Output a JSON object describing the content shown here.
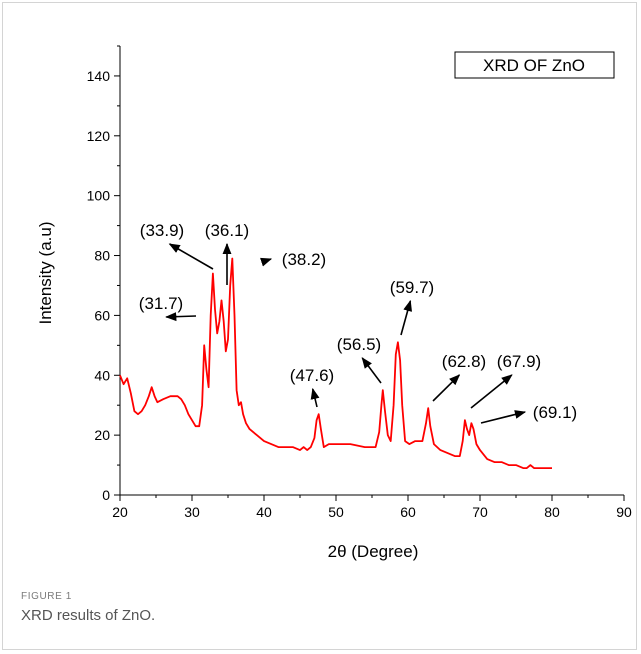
{
  "figure": {
    "label": "FIGURE 1",
    "caption": "XRD results of ZnO."
  },
  "chart_data": {
    "type": "line",
    "title": "XRD OF ZnO",
    "xlabel": "2θ (Degree)",
    "ylabel": "Intensity (a.u)",
    "xlim": [
      20,
      90
    ],
    "ylim": [
      0,
      150
    ],
    "xticks": [
      20,
      30,
      40,
      50,
      60,
      70,
      80,
      90
    ],
    "yticks": [
      0,
      20,
      40,
      60,
      80,
      100,
      120,
      140
    ],
    "grid": false,
    "line_color": "#ff0000",
    "series": [
      {
        "x": [
          20,
          20.5,
          21,
          21.5,
          22,
          22.5,
          23,
          23.5,
          24,
          24.4,
          24.8,
          25.2,
          26,
          27,
          28,
          28.5,
          29,
          29.5,
          30,
          30.5,
          31,
          31.4,
          31.7,
          32.0,
          32.3,
          32.6,
          32.9,
          33.2,
          33.5,
          33.8,
          34.1,
          34.4,
          34.7,
          35.0,
          35.3,
          35.6,
          35.9,
          36.2,
          36.5,
          36.8,
          37.1,
          37.5,
          38.0,
          38.5,
          39,
          40,
          41,
          42,
          43,
          44,
          45,
          45.5,
          46,
          46.5,
          47,
          47.3,
          47.6,
          47.9,
          48.3,
          49,
          50,
          52,
          54,
          55.5,
          56.0,
          56.3,
          56.5,
          56.8,
          57.2,
          57.6,
          58.0,
          58.3,
          58.6,
          58.9,
          59.2,
          59.6,
          60.2,
          61,
          62,
          62.5,
          62.8,
          63.1,
          63.6,
          64.5,
          65.5,
          66.5,
          67.2,
          67.6,
          67.9,
          68.2,
          68.5,
          68.8,
          69.1,
          69.5,
          70,
          71,
          72,
          73,
          74,
          75,
          76,
          76.5,
          77,
          77.5,
          78,
          79,
          80
        ],
        "y": [
          40,
          37,
          39,
          34,
          28,
          27,
          28,
          30,
          33,
          36,
          33,
          31,
          32,
          33,
          33,
          32,
          30,
          27,
          25,
          23,
          23,
          30,
          50,
          42,
          36,
          60,
          74,
          62,
          54,
          58,
          65,
          58,
          48,
          52,
          70,
          79,
          60,
          35,
          30,
          31,
          27,
          24,
          22,
          21,
          20,
          18,
          17,
          16,
          16,
          16,
          15,
          16,
          15,
          16,
          19,
          25,
          27,
          22,
          16,
          17,
          17,
          17,
          16,
          16,
          21,
          30,
          35,
          28,
          20,
          18,
          30,
          47,
          51,
          45,
          30,
          18,
          17,
          18,
          18,
          24,
          29,
          23,
          17,
          15,
          14,
          13,
          13,
          18,
          25,
          22,
          20,
          24,
          22,
          17,
          15,
          12,
          11,
          11,
          10,
          10,
          9,
          9,
          10,
          9,
          9,
          9,
          9
        ]
      }
    ],
    "annotations": [
      {
        "text": "(31.7)",
        "peak_x": 31.7,
        "peak_y": 52
      },
      {
        "text": "(33.9)",
        "peak_x": 32.9,
        "peak_y": 74
      },
      {
        "text": "(36.1)",
        "peak_x": 34.3,
        "peak_y": 67
      },
      {
        "text": "(38.2)",
        "peak_x": 36.5,
        "peak_y": 79
      },
      {
        "text": "(47.6)",
        "peak_x": 47.6,
        "peak_y": 27
      },
      {
        "text": "(56.5)",
        "peak_x": 56.5,
        "peak_y": 35
      },
      {
        "text": "(59.7)",
        "peak_x": 58.6,
        "peak_y": 51
      },
      {
        "text": "(62.8)",
        "peak_x": 62.8,
        "peak_y": 29
      },
      {
        "text": "(67.9)",
        "peak_x": 68.0,
        "peak_y": 26
      },
      {
        "text": "(69.1)",
        "peak_x": 69.2,
        "peak_y": 24
      }
    ]
  }
}
